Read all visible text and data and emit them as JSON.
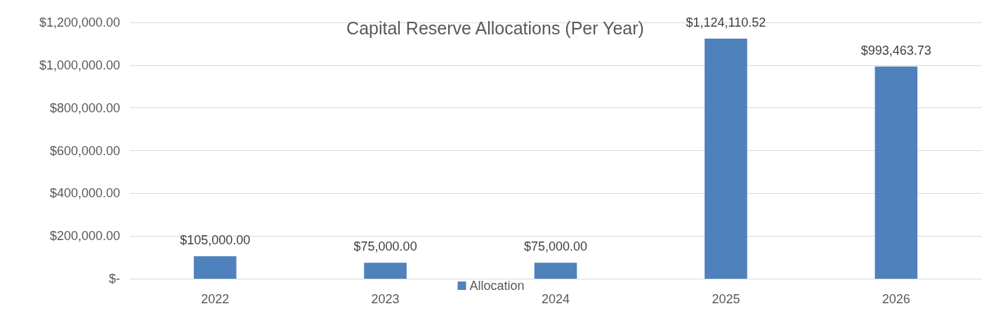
{
  "chart_data": {
    "type": "bar",
    "title": "Capital Reserve Allocations (Per Year)",
    "categories": [
      "2022",
      "2023",
      "2024",
      "2025",
      "2026"
    ],
    "series": [
      {
        "name": "Allocation",
        "color": "#4f81bd",
        "values": [
          105000,
          75000,
          75000,
          1124110.52,
          993463.73
        ],
        "value_labels": [
          "$105,000.00",
          "$75,000.00",
          "$75,000.00",
          "$1,124,110.52",
          "$993,463.73"
        ]
      }
    ],
    "ylim": [
      0,
      1200000
    ],
    "yticks": [
      {
        "value": 0,
        "label": "$-"
      },
      {
        "value": 200000,
        "label": "$200,000.00"
      },
      {
        "value": 400000,
        "label": "$400,000.00"
      },
      {
        "value": 600000,
        "label": "$600,000.00"
      },
      {
        "value": 800000,
        "label": "$800,000.00"
      },
      {
        "value": 1000000,
        "label": "$1,000,000.00"
      },
      {
        "value": 1200000,
        "label": "$1,200,000.00"
      }
    ],
    "grid": "y",
    "legend": "bottom"
  }
}
